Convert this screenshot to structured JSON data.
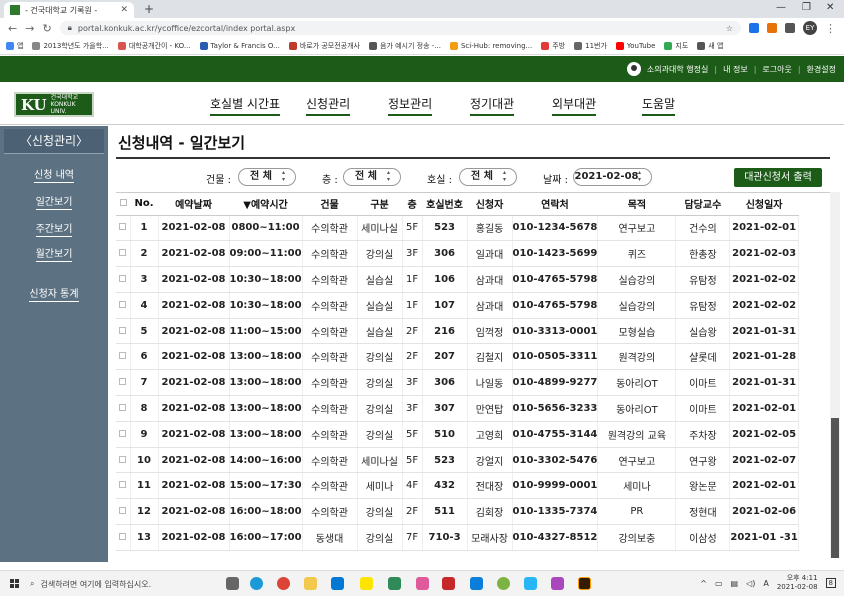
{
  "browser": {
    "tab_title": "- 건국대학교 기록원 -",
    "url": "portal.konkuk.ac.kr/ycoffice/ezcortal/index portal.aspx",
    "profile_initials": "EY",
    "bookmarks": [
      {
        "label": "앱",
        "color": "#4285f4"
      },
      {
        "label": "2013학년도 가을학...",
        "color": "#888888"
      },
      {
        "label": "대학공개간이 - KO...",
        "color": "#d9534f"
      },
      {
        "label": "Taylor & Francis O...",
        "color": "#2a5db0"
      },
      {
        "label": "바로가 공모전공개사",
        "color": "#c0392b"
      },
      {
        "label": "음가 예시기 정송 -...",
        "color": "#555555"
      },
      {
        "label": "Sci-Hub: removing...",
        "color": "#f39c12"
      },
      {
        "label": "주방",
        "color": "#e53935"
      },
      {
        "label": "11번가",
        "color": "#666666"
      },
      {
        "label": "YouTube",
        "color": "#ff0000"
      },
      {
        "label": "지도",
        "color": "#34a853"
      },
      {
        "label": "새 앱",
        "color": "#555555"
      }
    ]
  },
  "header": {
    "user_label": "소의과대학 행정실",
    "links": [
      "내 정보",
      "로그아웃",
      "환경설정"
    ],
    "logo_text": "KU",
    "logo_sub": "건국대학교 KONKUK UNIV.",
    "nav": [
      "호실별 시간표",
      "신청관리",
      "정보관리",
      "정기대관",
      "외부대관",
      "도움말"
    ]
  },
  "sidebar": {
    "heading": "〈신청관리〉",
    "items": [
      "신청 내역",
      "일간보기",
      "주간보기",
      "월간보기",
      "신청자 통계"
    ]
  },
  "page": {
    "title": "신청내역 - 일간보기",
    "filters": {
      "building_label": "건물 :",
      "building_value": "전 체",
      "floor_label": "층 :",
      "floor_value": "전 체",
      "room_label": "호실 :",
      "room_value": "전 체",
      "date_label": "날짜 :",
      "date_value": "2021-02-08"
    },
    "print_button": "대관신청서 출력"
  },
  "table": {
    "columns": [
      "No.",
      "예약날짜",
      "▼예약시간",
      "건물",
      "구분",
      "층",
      "호실번호",
      "신청자",
      "연락처",
      "목적",
      "담당교수",
      "신청일자"
    ],
    "rows": [
      [
        "1",
        "2021-02-08",
        "0800~11:00",
        "수의학관",
        "세미나실",
        "5F",
        "523",
        "홍길동",
        "010-1234-5678",
        "연구보고",
        "건수의",
        "2021-02-01"
      ],
      [
        "2",
        "2021-02-08",
        "09:00~11:00",
        "수의학관",
        "강의실",
        "3F",
        "306",
        "일과대",
        "010-1423-5699",
        "퀴즈",
        "한총장",
        "2021-02-03"
      ],
      [
        "3",
        "2021-02-08",
        "10:30~18:00",
        "수의학관",
        "실습실",
        "1F",
        "106",
        "삼과대",
        "010-4765-5798",
        "실습강의",
        "유탐정",
        "2021-02-02"
      ],
      [
        "4",
        "2021-02-08",
        "10:30~18:00",
        "수의학관",
        "실습실",
        "1F",
        "107",
        "삼과대",
        "010-4765-5798",
        "실습강의",
        "유탐정",
        "2021-02-02"
      ],
      [
        "5",
        "2021-02-08",
        "11:00~15:00",
        "수의학관",
        "실습실",
        "2F",
        "216",
        "임꺽정",
        "010-3313-0001",
        "모형실습",
        "실습왕",
        "2021-01-31"
      ],
      [
        "6",
        "2021-02-08",
        "13:00~18:00",
        "수의학관",
        "강의실",
        "2F",
        "207",
        "김철지",
        "010-0505-3311",
        "원격강의",
        "샬롯데",
        "2021-01-28"
      ],
      [
        "7",
        "2021-02-08",
        "13:00~18:00",
        "수의학관",
        "강의실",
        "3F",
        "306",
        "나일동",
        "010-4899-9277",
        "동아리OT",
        "이마트",
        "2021-01-31"
      ],
      [
        "8",
        "2021-02-08",
        "13:00~18:00",
        "수의학관",
        "강의실",
        "3F",
        "307",
        "만연탑",
        "010-5656-3233",
        "동아리OT",
        "이마트",
        "2021-02-01"
      ],
      [
        "9",
        "2021-02-08",
        "13:00~18:00",
        "수의학관",
        "강의실",
        "5F",
        "510",
        "고영희",
        "010-4755-3144",
        "원격강의 교육",
        "주차장",
        "2021-02-05"
      ],
      [
        "10",
        "2021-02-08",
        "14:00~16:00",
        "수의학관",
        "세미나실",
        "5F",
        "523",
        "강얼지",
        "010-3302-5476",
        "연구보고",
        "연구왕",
        "2021-02-07"
      ],
      [
        "11",
        "2021-02-08",
        "15:00~17:30",
        "수의학관",
        "세미나",
        "4F",
        "432",
        "전대장",
        "010-9999-0001",
        "세미나",
        "왕논문",
        "2021-02-01"
      ],
      [
        "12",
        "2021-02-08",
        "16:00~18:00",
        "수의학관",
        "강의실",
        "2F",
        "511",
        "김회장",
        "010-1335-7374",
        "PR",
        "정현대",
        "2021-02-06"
      ],
      [
        "13",
        "2021-02-08",
        "16:00~17:00",
        "동생대",
        "강의실",
        "7F",
        "710-3",
        "모래사장",
        "010-4327-8512",
        "강의보충",
        "이삼성",
        "2021-01 -31"
      ]
    ]
  },
  "taskbar": {
    "search_placeholder": "검색하려면 여기에 입력하십시오.",
    "time": "오후 4:11",
    "date": "2021-02-08",
    "notifications": "8"
  }
}
